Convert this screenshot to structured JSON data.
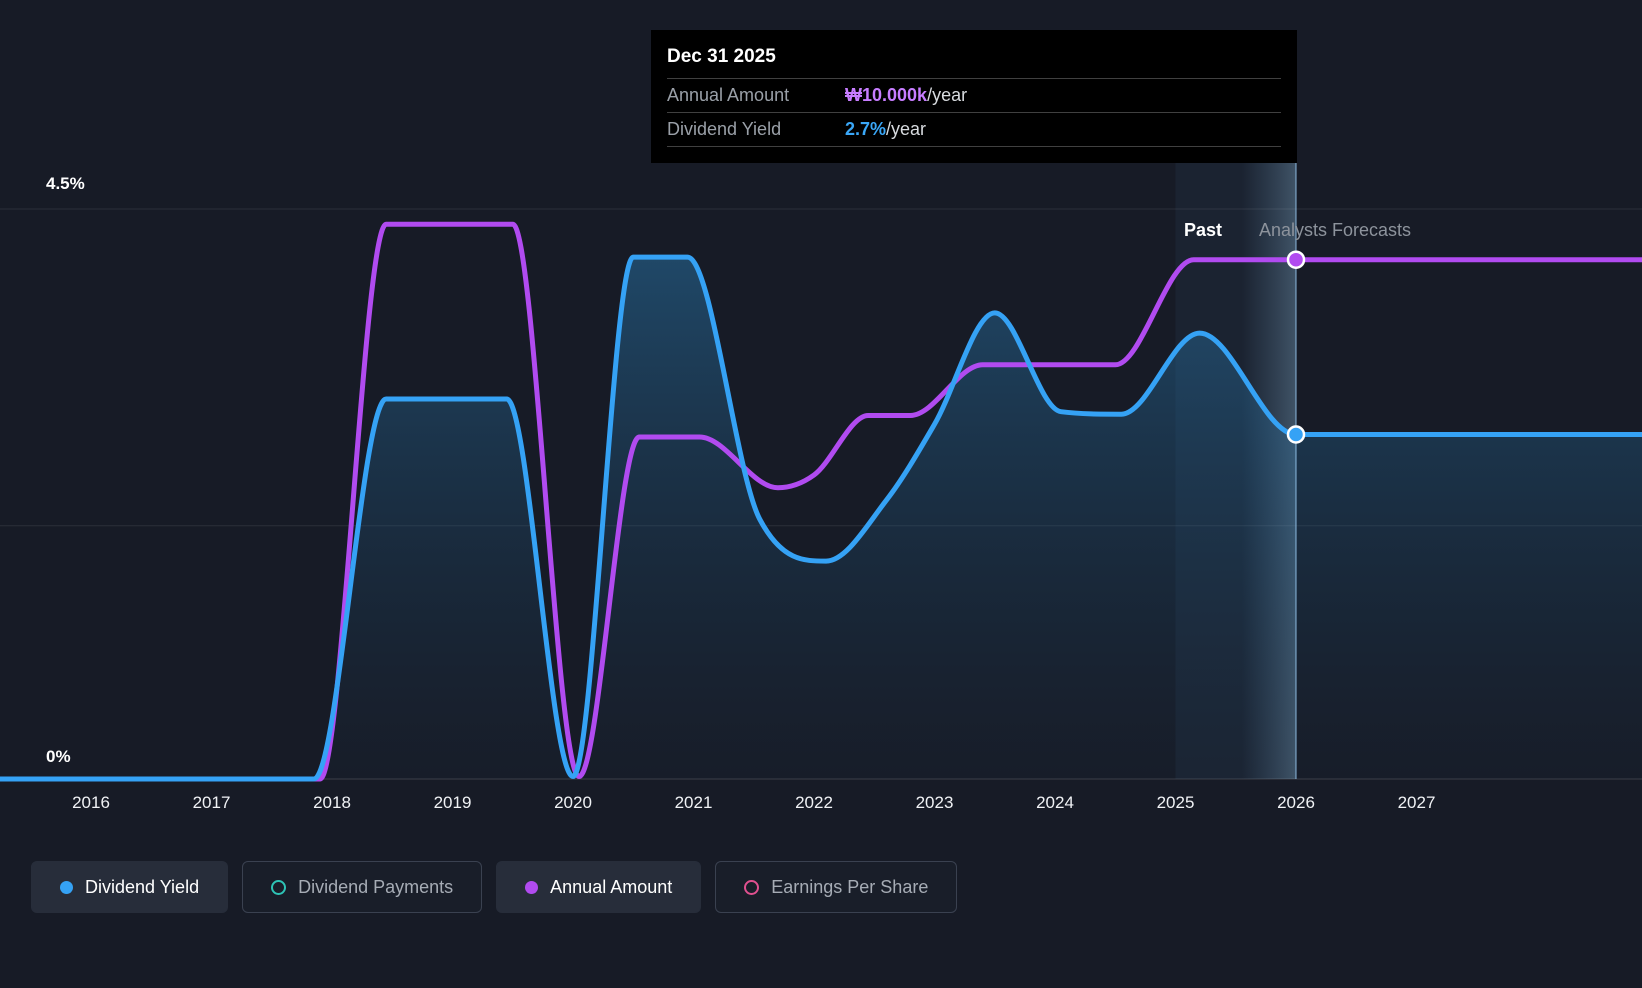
{
  "colors": {
    "background": "#171b26",
    "blue": "#35a2f5",
    "purple": "#b14bf0",
    "teal": "#2ec4b6",
    "pink": "#e0508f",
    "grid": "rgba(255,255,255,0.09)"
  },
  "labels": {
    "y_top": "4.5%",
    "y_bottom": "0%",
    "past": "Past",
    "forecast": "Analysts Forecasts"
  },
  "tooltip": {
    "date": "Dec 31 2025",
    "rows": [
      {
        "label": "Annual Amount",
        "value": "₩10.000k",
        "suffix": "/year",
        "color": "#c77dff"
      },
      {
        "label": "Dividend Yield",
        "value": "2.7%",
        "suffix": "/year",
        "color": "#3aa7f7"
      }
    ]
  },
  "chart_data": {
    "type": "area",
    "x_axis": {
      "ticks": [
        "2016",
        "2017",
        "2018",
        "2019",
        "2020",
        "2021",
        "2022",
        "2023",
        "2024",
        "2025",
        "2026",
        "2027"
      ],
      "range": [
        2015.2,
        2028.9
      ]
    },
    "y_axis": {
      "range": [
        0,
        4.5
      ],
      "unit": "%",
      "labels_shown": [
        "4.5%",
        "0%"
      ],
      "gridlines_pct": [
        4.5,
        2.0,
        0
      ]
    },
    "divider_x": 2026,
    "series": [
      {
        "name": "Dividend Yield",
        "style": "area-line",
        "color": "#35a2f5",
        "points": [
          [
            2015.2,
            0
          ],
          [
            2016.5,
            0
          ],
          [
            2017.85,
            0
          ],
          [
            2018.45,
            3.0
          ],
          [
            2019.45,
            3.0
          ],
          [
            2020.0,
            0.02
          ],
          [
            2020.5,
            4.12
          ],
          [
            2020.95,
            4.12
          ],
          [
            2021.55,
            2.05
          ],
          [
            2022.1,
            1.72
          ],
          [
            2022.6,
            2.2
          ],
          [
            2023.0,
            2.8
          ],
          [
            2023.5,
            3.68
          ],
          [
            2024.05,
            2.9
          ],
          [
            2024.55,
            2.88
          ],
          [
            2025.2,
            3.52
          ],
          [
            2026.0,
            2.72
          ],
          [
            2028.9,
            2.72
          ]
        ]
      },
      {
        "name": "Annual Amount",
        "style": "line",
        "color": "#b14bf0",
        "points": [
          [
            2015.2,
            0
          ],
          [
            2016.5,
            0
          ],
          [
            2017.9,
            0
          ],
          [
            2018.45,
            4.38
          ],
          [
            2019.5,
            4.38
          ],
          [
            2020.05,
            0.02
          ],
          [
            2020.55,
            2.7
          ],
          [
            2021.05,
            2.7
          ],
          [
            2021.7,
            2.3
          ],
          [
            2022.0,
            2.4
          ],
          [
            2022.45,
            2.87
          ],
          [
            2022.8,
            2.87
          ],
          [
            2023.4,
            3.27
          ],
          [
            2024.5,
            3.27
          ],
          [
            2025.15,
            4.1
          ],
          [
            2028.9,
            4.1
          ]
        ]
      }
    ],
    "markers": [
      {
        "series": "Annual Amount",
        "color": "#b14bf0",
        "x": 2026,
        "axis_y": 4.1,
        "value": "₩10.000k/year"
      },
      {
        "series": "Dividend Yield",
        "color": "#35a2f5",
        "x": 2026,
        "axis_y": 2.72,
        "value": "2.7%/year"
      }
    ]
  },
  "legend": [
    {
      "label": "Dividend Yield",
      "color": "#35a2f5",
      "marker": "filled",
      "state": "active"
    },
    {
      "label": "Dividend Payments",
      "color": "#2ec4b6",
      "marker": "outline",
      "state": "inactive"
    },
    {
      "label": "Annual Amount",
      "color": "#b14bf0",
      "marker": "filled",
      "state": "active"
    },
    {
      "label": "Earnings Per Share",
      "color": "#e0508f",
      "marker": "outline",
      "state": "inactive"
    }
  ]
}
